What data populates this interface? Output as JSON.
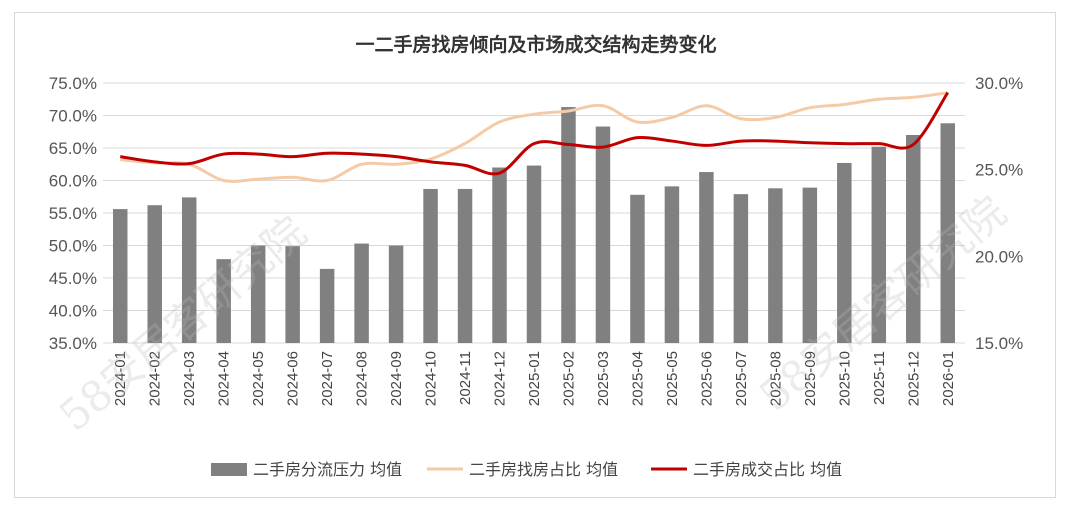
{
  "chart_data": {
    "type": "bar+line",
    "title": "一二手房找房倾向及市场成交结构走势变化",
    "categories": [
      "2024-01",
      "2024-02",
      "2024-03",
      "2024-04",
      "2024-05",
      "2024-06",
      "2024-07",
      "2024-08",
      "2024-09",
      "2024-10",
      "2024-11",
      "2024-12",
      "2025-01",
      "2025-02",
      "2025-03",
      "2025-04",
      "2025-05",
      "2025-06",
      "2025-07",
      "2025-08",
      "2025-09",
      "2025-10",
      "2025-11",
      "2025-12",
      "2026-01"
    ],
    "left_axis": {
      "min": 0.35,
      "max": 0.75,
      "ticks": [
        "35.0%",
        "40.0%",
        "45.0%",
        "50.0%",
        "55.0%",
        "60.0%",
        "65.0%",
        "70.0%",
        "75.0%"
      ]
    },
    "right_axis": {
      "min": 0.15,
      "max": 0.3,
      "ticks": [
        "15.0%",
        "20.0%",
        "25.0%",
        "30.0%"
      ]
    },
    "grid": true,
    "legend_position": "bottom",
    "series": [
      {
        "name": "二手房分流压力 均值",
        "type": "bar",
        "axis": "left",
        "color": "#808080",
        "values": [
          0.556,
          0.562,
          0.574,
          0.479,
          0.5,
          0.499,
          0.464,
          0.503,
          0.5,
          0.587,
          0.587,
          0.62,
          0.623,
          0.713,
          0.683,
          0.578,
          0.591,
          0.613,
          0.579,
          0.588,
          0.589,
          0.627,
          0.652,
          0.67,
          0.688
        ]
      },
      {
        "name": "二手房找房占比 均值",
        "type": "line",
        "axis": "left",
        "color": "#f5cba7",
        "values": [
          0.632,
          0.627,
          0.625,
          0.6,
          0.602,
          0.605,
          0.6,
          0.625,
          0.625,
          0.633,
          0.657,
          0.69,
          0.702,
          0.707,
          0.715,
          0.69,
          0.697,
          0.715,
          0.695,
          0.697,
          0.712,
          0.717,
          0.725,
          0.728,
          0.735
        ]
      },
      {
        "name": "二手房成交占比 均值",
        "type": "line",
        "axis": "right",
        "color": "#c00000",
        "values": [
          0.2575,
          0.2545,
          0.2535,
          0.259,
          0.259,
          0.2575,
          0.2595,
          0.259,
          0.2575,
          0.2545,
          0.2525,
          0.248,
          0.265,
          0.2645,
          0.263,
          0.2685,
          0.2665,
          0.264,
          0.2665,
          0.2665,
          0.2655,
          0.265,
          0.265,
          0.2645,
          0.2945
        ]
      }
    ]
  },
  "watermark": "58安居客研究院"
}
